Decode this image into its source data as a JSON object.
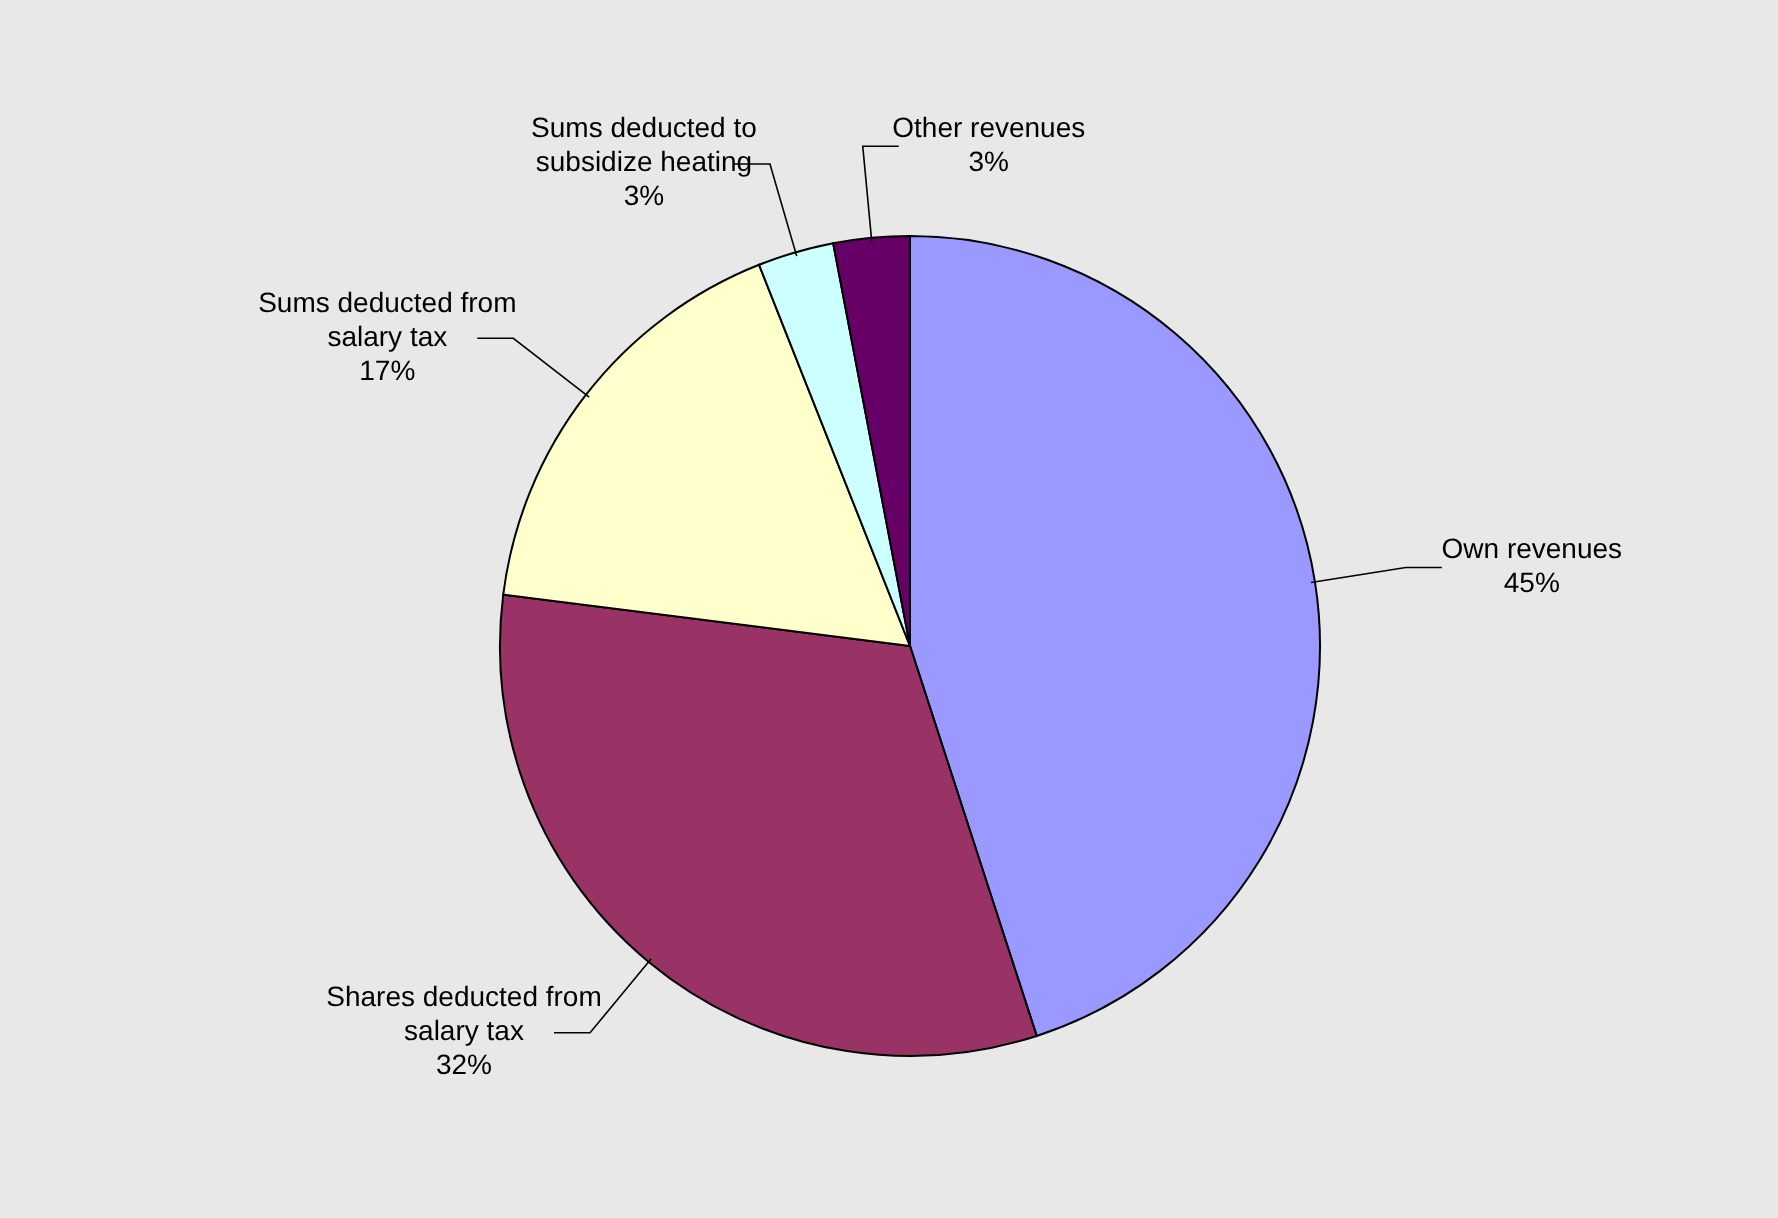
{
  "chart_data": {
    "type": "pie",
    "categories": [
      "Own revenues",
      "Shares deducted from salary tax",
      "Sums deducted from salary tax",
      "Sums deducted to subsidize heating",
      "Other revenues"
    ],
    "values": [
      45,
      32,
      17,
      3,
      3
    ],
    "colors": [
      "#9999ff",
      "#993366",
      "#ffffcc",
      "#ccffff",
      "#660066"
    ],
    "value_labels": [
      "45%",
      "32%",
      "17%",
      "3%",
      "3%"
    ]
  }
}
